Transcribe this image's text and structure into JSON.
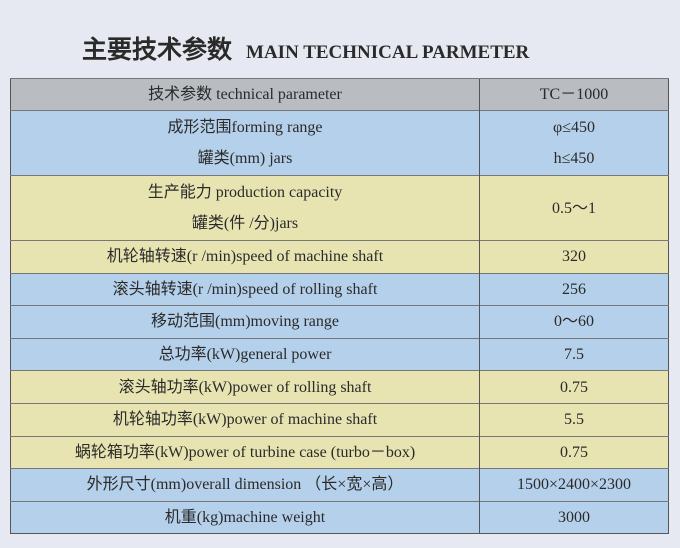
{
  "title": {
    "zh": "主要技术参数",
    "en": "MAIN TECHNICAL PARMETER"
  },
  "colors": {
    "header": "#b9bcc1",
    "blue": "#b5d0ea",
    "yellow": "#e7e4b2"
  },
  "header": {
    "param": "技术参数 technical parameter",
    "model": "TC－1000"
  },
  "rows": [
    {
      "lines": [
        "成形范围forming range",
        "罐类(mm) jars"
      ],
      "values": [
        "φ≤450",
        "h≤450"
      ],
      "color": "blue"
    },
    {
      "lines": [
        "生产能力 production capacity",
        "罐类(件 /分)jars"
      ],
      "values": [
        "0.5～1"
      ],
      "color": "yellow"
    },
    {
      "lines": [
        "机轮轴转速(r /min)speed of machine shaft"
      ],
      "values": [
        "320"
      ],
      "color": "yellow"
    },
    {
      "lines": [
        "滚头轴转速(r /min)speed of rolling shaft"
      ],
      "values": [
        "256"
      ],
      "color": "blue"
    },
    {
      "lines": [
        "移动范围(mm)moving range"
      ],
      "values": [
        "0～60"
      ],
      "color": "blue"
    },
    {
      "lines": [
        "总功率(kW)general power"
      ],
      "values": [
        "7.5"
      ],
      "color": "blue"
    },
    {
      "lines": [
        "滚头轴功率(kW)power of rolling shaft"
      ],
      "values": [
        "0.75"
      ],
      "color": "yellow"
    },
    {
      "lines": [
        "机轮轴功率(kW)power of machine shaft"
      ],
      "values": [
        "5.5"
      ],
      "color": "yellow"
    },
    {
      "lines": [
        "蜗轮箱功率(kW)power of turbine case (turbo－box)"
      ],
      "values": [
        "0.75"
      ],
      "color": "yellow"
    },
    {
      "lines": [
        "外形尺寸(mm)overall dimension （长×宽×高）"
      ],
      "values": [
        "1500×2400×2300"
      ],
      "color": "blue"
    },
    {
      "lines": [
        "机重(kg)machine weight"
      ],
      "values": [
        "3000"
      ],
      "color": "blue"
    }
  ]
}
